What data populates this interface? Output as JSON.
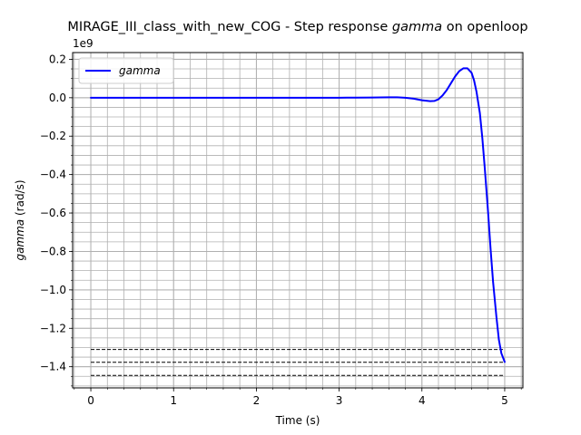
{
  "chart_data": {
    "type": "line",
    "title_prefix": "MIRAGE_III_class_with_new_COG - Step response ",
    "title_italic": "gamma",
    "title_suffix": " on openloop",
    "xlabel": "Time (s)",
    "ylabel_italic": "gamma",
    "ylabel_unit": " (rad/s)",
    "y_offset_label": "1e9",
    "xlim": [
      -0.22,
      5.22
    ],
    "ylim": [
      -1.51,
      0.235
    ],
    "x_ticks": [
      0,
      1,
      2,
      3,
      4,
      5
    ],
    "y_ticks": [
      0.2,
      0.0,
      -0.2,
      -0.4,
      -0.6,
      -0.8,
      -1.0,
      -1.2,
      -1.4
    ],
    "x_tick_labels": [
      "0",
      "1",
      "2",
      "3",
      "4",
      "5"
    ],
    "y_tick_labels": [
      "0.2",
      "0.0",
      "−0.2",
      "−0.4",
      "−0.6",
      "−0.8",
      "−1.0",
      "−1.2",
      "−1.4"
    ],
    "grid": true,
    "grid_minor": true,
    "legend_position": "top-left",
    "series": [
      {
        "name": "gamma",
        "color": "#0000ff",
        "x": [
          0,
          0.5,
          1,
          1.5,
          2,
          2.5,
          3,
          3.2,
          3.4,
          3.6,
          3.7,
          3.8,
          3.9,
          4.0,
          4.1,
          4.15,
          4.2,
          4.25,
          4.3,
          4.35,
          4.4,
          4.45,
          4.5,
          4.55,
          4.6,
          4.63,
          4.66,
          4.7,
          4.73,
          4.76,
          4.8,
          4.83,
          4.86,
          4.9,
          4.93,
          4.96,
          5.0
        ],
        "y": [
          0,
          0,
          0,
          0,
          0,
          0,
          0,
          0.0003,
          0.001,
          0.002,
          0.002,
          0,
          -0.005,
          -0.013,
          -0.018,
          -0.017,
          -0.008,
          0.012,
          0.04,
          0.075,
          0.11,
          0.138,
          0.153,
          0.153,
          0.13,
          0.09,
          0.03,
          -0.08,
          -0.21,
          -0.37,
          -0.6,
          -0.79,
          -0.96,
          -1.14,
          -1.26,
          -1.33,
          -1.375
        ]
      }
    ],
    "reference_lines": [
      {
        "y": -1.31,
        "x_from": 0,
        "x_to": 5,
        "style": "dashed",
        "color": "#000000"
      },
      {
        "y": -1.377,
        "x_from": 0,
        "x_to": 5,
        "style": "dashed",
        "color": "#000000"
      },
      {
        "y": -1.445,
        "x_from": 0,
        "x_to": 5,
        "style": "dashed",
        "color": "#000000"
      }
    ]
  }
}
